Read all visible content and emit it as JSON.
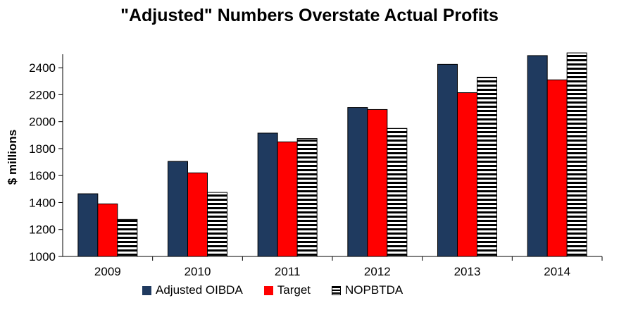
{
  "chart_data": {
    "type": "bar",
    "title": "\"Adjusted\" Numbers Overstate Actual Profits",
    "xlabel": "",
    "ylabel": "$ millions",
    "ylim": [
      1000,
      2500
    ],
    "yticks": [
      1000,
      1200,
      1400,
      1600,
      1800,
      2000,
      2200,
      2400
    ],
    "categories": [
      "2009",
      "2010",
      "2011",
      "2012",
      "2013",
      "2014"
    ],
    "series": [
      {
        "name": "Adjusted OIBDA",
        "color": "#1f3a5f",
        "pattern": "solid",
        "values": [
          1465,
          1705,
          1915,
          2105,
          2425,
          2490
        ]
      },
      {
        "name": "Target",
        "color": "#ff0000",
        "pattern": "solid",
        "values": [
          1390,
          1620,
          1850,
          2090,
          2215,
          2310
        ]
      },
      {
        "name": "NOPBTDA",
        "color": "#000000",
        "pattern": "horizontal-stripes",
        "values": [
          1275,
          1475,
          1875,
          1950,
          2330,
          2510
        ]
      }
    ],
    "grid": false,
    "legend_position": "bottom"
  }
}
